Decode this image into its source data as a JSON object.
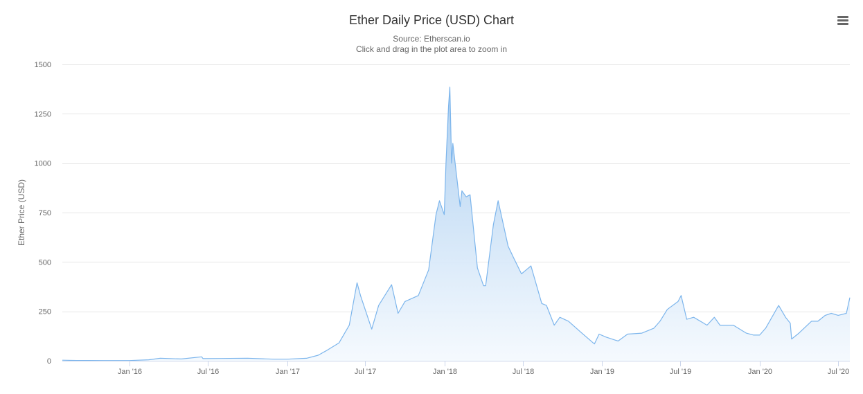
{
  "chart_data": {
    "type": "area",
    "title": "Ether Daily Price (USD) Chart",
    "subtitle": "Source: Etherscan.io",
    "subtitle2": "Click and drag in the plot area to zoom in",
    "xlabel": "",
    "ylabel": "Ether Price (USD)",
    "ylim": [
      0,
      1500
    ],
    "xlim": [
      "2015-07-30",
      "2020-07-28"
    ],
    "yticks": [
      "0",
      "250",
      "500",
      "750",
      "1000",
      "1250",
      "1500"
    ],
    "xticks": [
      {
        "date": "2016-01-01",
        "label": "Jan '16"
      },
      {
        "date": "2016-07-01",
        "label": "Jul '16"
      },
      {
        "date": "2017-01-01",
        "label": "Jan '17"
      },
      {
        "date": "2017-07-01",
        "label": "Jul '17"
      },
      {
        "date": "2018-01-01",
        "label": "Jan '18"
      },
      {
        "date": "2018-07-01",
        "label": "Jul '18"
      },
      {
        "date": "2019-01-01",
        "label": "Jan '19"
      },
      {
        "date": "2019-07-01",
        "label": "Jul '19"
      },
      {
        "date": "2020-01-01",
        "label": "Jan '20"
      },
      {
        "date": "2020-07-01",
        "label": "Jul '20"
      }
    ],
    "grid": true,
    "legend": "none",
    "colors": {
      "line": "#7cb5ec",
      "fill_top": "#a9cdf0",
      "fill_bottom": "#f4f9fe",
      "grid": "#e6e6e6",
      "axis": "#ccd6eb"
    },
    "series": [
      {
        "x": [
          "2015-07-30",
          "2015-09-01",
          "2015-11-01",
          "2016-01-01",
          "2016-02-15",
          "2016-03-13",
          "2016-05-01",
          "2016-06-17",
          "2016-06-20",
          "2016-08-01",
          "2016-10-01",
          "2016-12-01",
          "2017-01-01",
          "2017-02-15",
          "2017-03-14",
          "2017-04-01",
          "2017-05-01",
          "2017-05-25",
          "2017-06-12",
          "2017-06-20",
          "2017-07-16",
          "2017-08-01",
          "2017-08-31",
          "2017-09-15",
          "2017-10-01",
          "2017-11-01",
          "2017-11-25",
          "2017-12-12",
          "2017-12-20",
          "2017-12-31",
          "2018-01-04",
          "2018-01-10",
          "2018-01-13",
          "2018-01-17",
          "2018-01-20",
          "2018-02-06",
          "2018-02-10",
          "2018-02-20",
          "2018-03-01",
          "2018-03-18",
          "2018-04-01",
          "2018-04-06",
          "2018-04-24",
          "2018-05-05",
          "2018-05-28",
          "2018-06-10",
          "2018-06-28",
          "2018-07-20",
          "2018-08-14",
          "2018-08-25",
          "2018-09-12",
          "2018-09-25",
          "2018-10-15",
          "2018-11-15",
          "2018-12-14",
          "2018-12-25",
          "2019-01-10",
          "2019-02-07",
          "2019-03-01",
          "2019-04-03",
          "2019-05-01",
          "2019-05-15",
          "2019-06-01",
          "2019-06-26",
          "2019-07-03",
          "2019-07-16",
          "2019-08-01",
          "2019-09-01",
          "2019-09-18",
          "2019-10-01",
          "2019-11-01",
          "2019-12-01",
          "2019-12-18",
          "2020-01-01",
          "2020-01-15",
          "2020-02-14",
          "2020-03-01",
          "2020-03-12",
          "2020-03-15",
          "2020-04-01",
          "2020-04-30",
          "2020-05-15",
          "2020-06-01",
          "2020-06-15",
          "2020-07-01",
          "2020-07-20",
          "2020-07-28"
        ],
        "values": [
          2.8,
          1.3,
          0.9,
          0.95,
          5,
          12.5,
          9,
          20,
          11,
          11.5,
          12.5,
          8.2,
          8,
          12.5,
          28,
          50,
          90,
          180,
          395,
          330,
          160,
          280,
          385,
          240,
          300,
          330,
          460,
          740,
          810,
          740,
          1000,
          1290,
          1385,
          1000,
          1100,
          780,
          860,
          830,
          840,
          470,
          380,
          380,
          690,
          810,
          580,
          520,
          440,
          480,
          290,
          280,
          180,
          220,
          200,
          140,
          85,
          135,
          120,
          100,
          135,
          140,
          165,
          200,
          260,
          300,
          330,
          210,
          220,
          180,
          220,
          180,
          180,
          140,
          130,
          130,
          165,
          280,
          220,
          190,
          110,
          140,
          200,
          200,
          230,
          240,
          230,
          240,
          320
        ]
      }
    ]
  },
  "ui": {
    "menu_icon": "hamburger-menu-icon"
  }
}
